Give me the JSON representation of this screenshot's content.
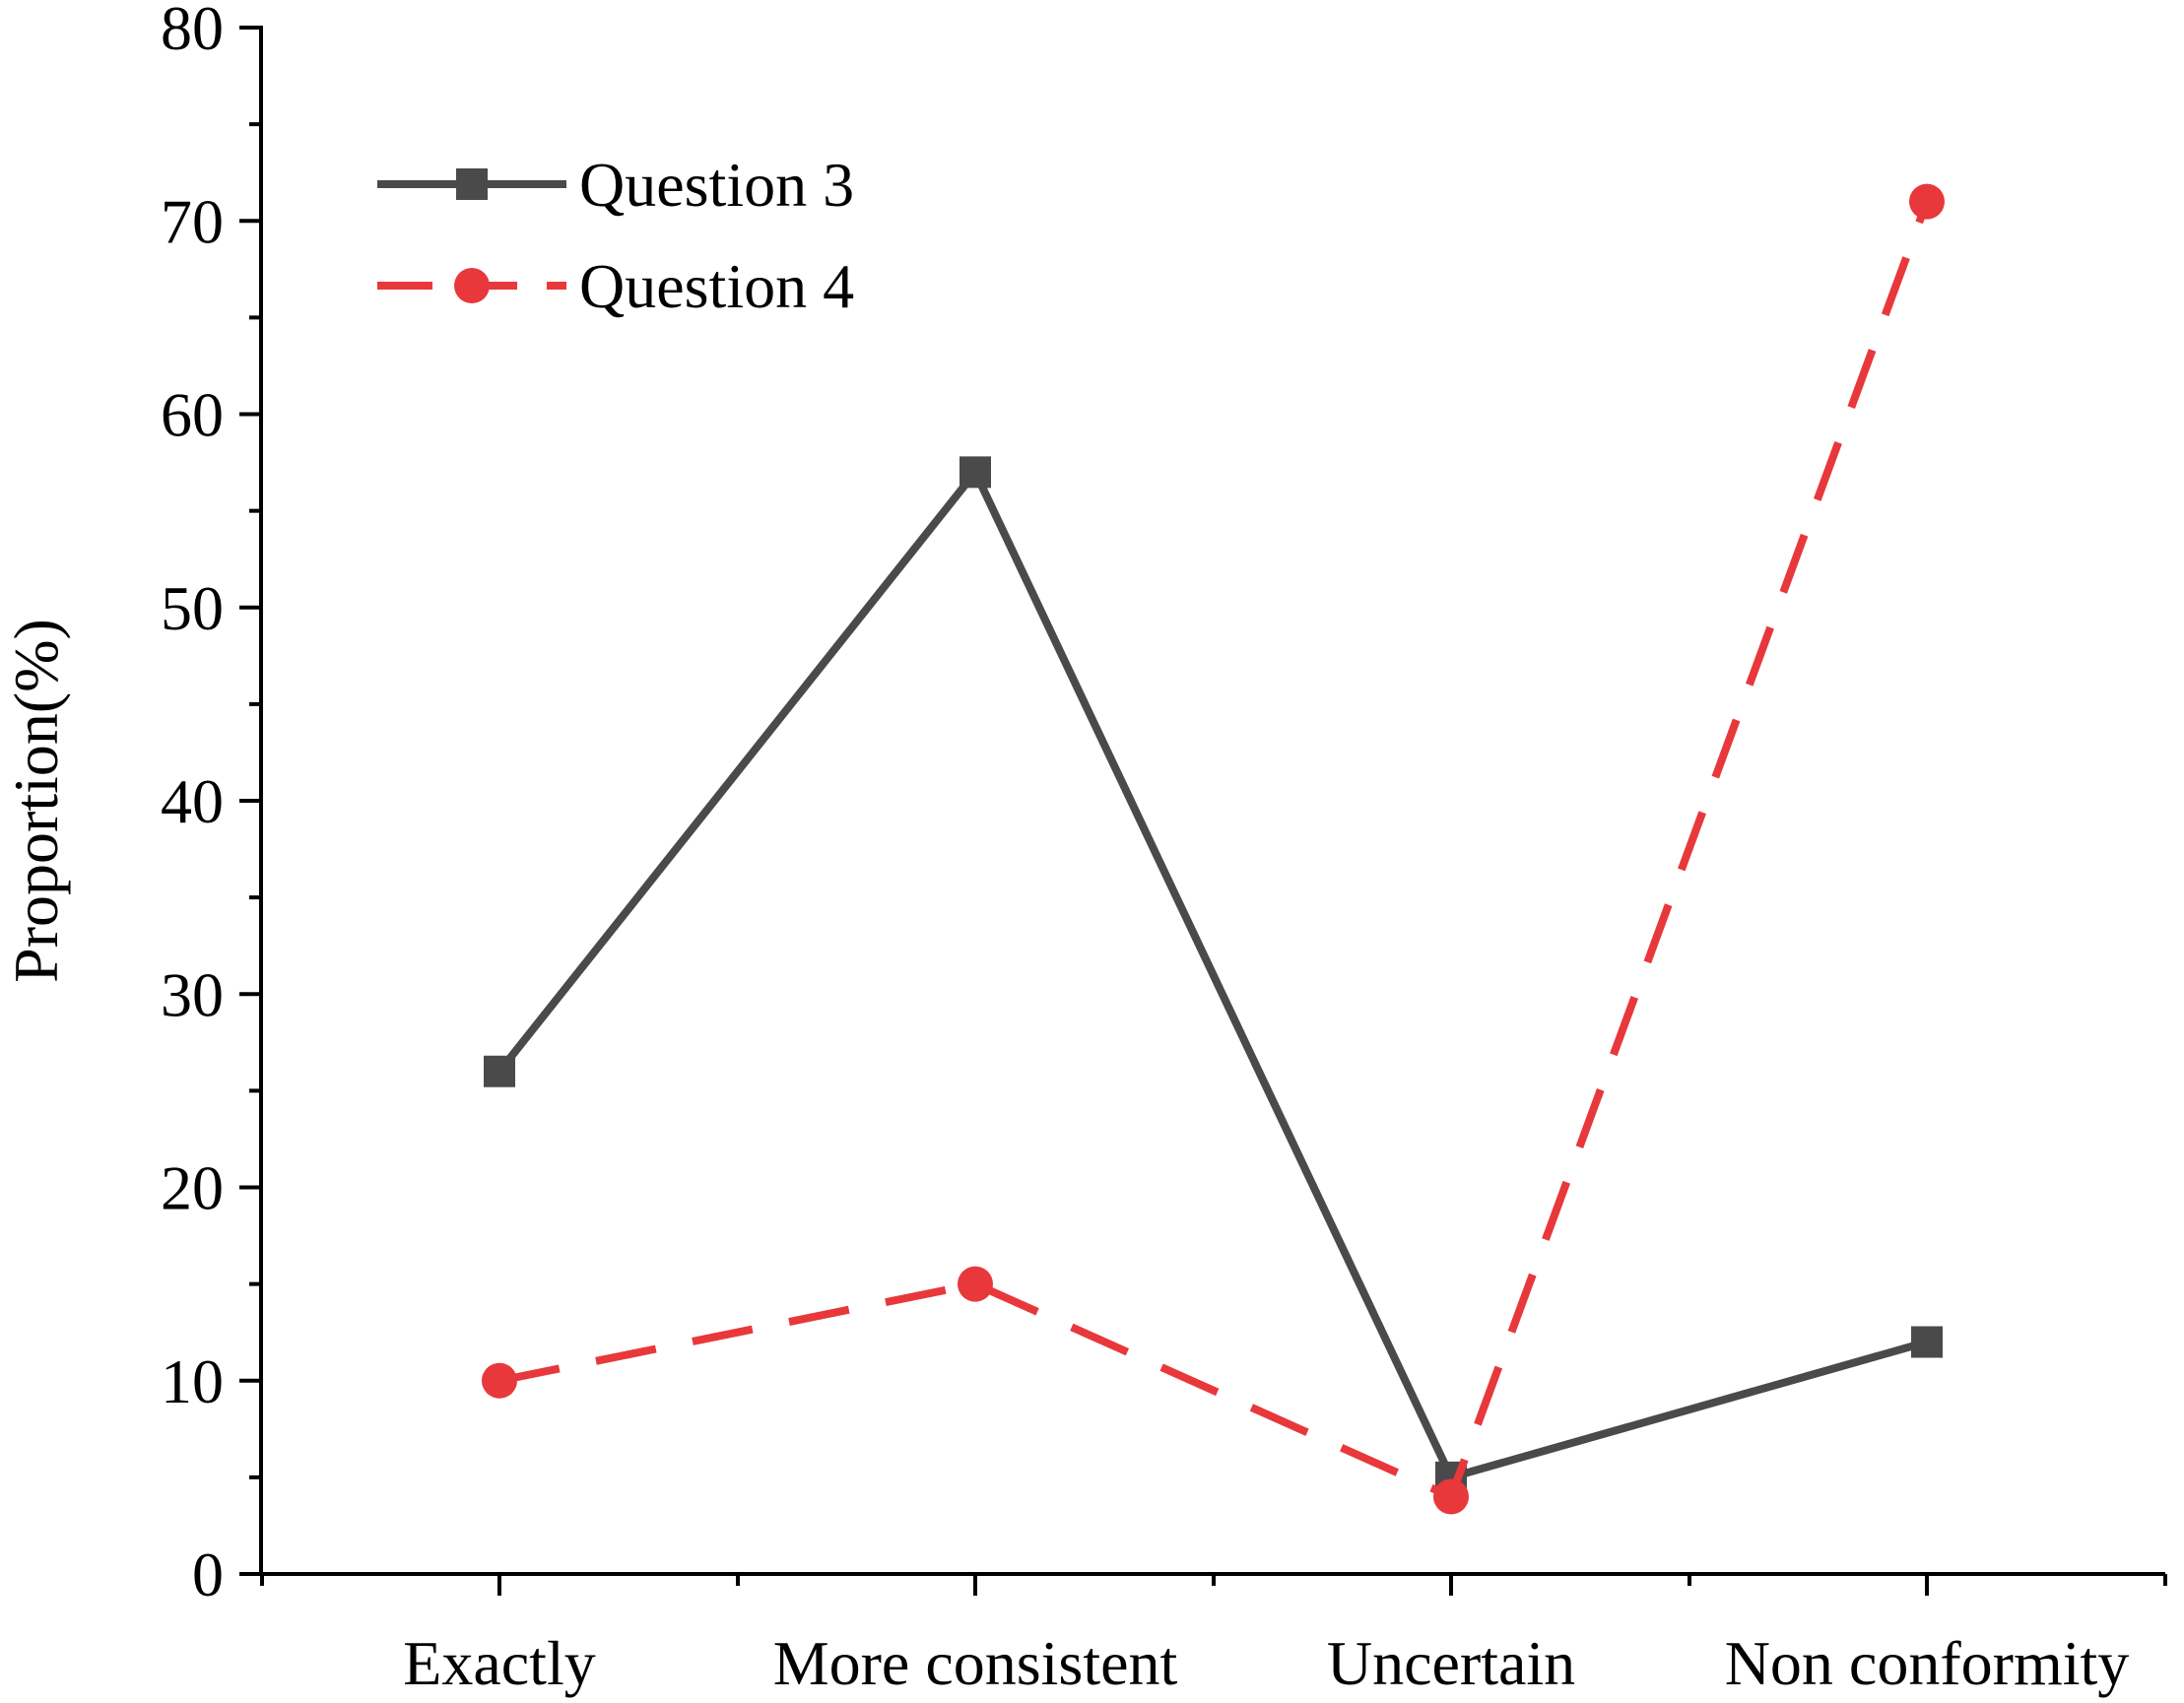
{
  "chart_data": {
    "type": "line",
    "categories": [
      "Exactly",
      "More consistent",
      "Uncertain",
      "Non conformity"
    ],
    "ylabel": "Proportion(%)",
    "xlabel": "",
    "ylim": [
      0,
      80
    ],
    "y_ticks": [
      "0",
      "10",
      "20",
      "30",
      "40",
      "50",
      "60",
      "70",
      "80"
    ],
    "grid": false,
    "legend_position": "top-left",
    "series": [
      {
        "name": "Question 3",
        "values": [
          26,
          57,
          5,
          12
        ],
        "color": "#4a4a4a",
        "marker": "square",
        "line_style": "solid"
      },
      {
        "name": "Question 4",
        "values": [
          10,
          15,
          4,
          71
        ],
        "color": "#e8383b",
        "marker": "circle",
        "line_style": "dashed"
      }
    ]
  }
}
